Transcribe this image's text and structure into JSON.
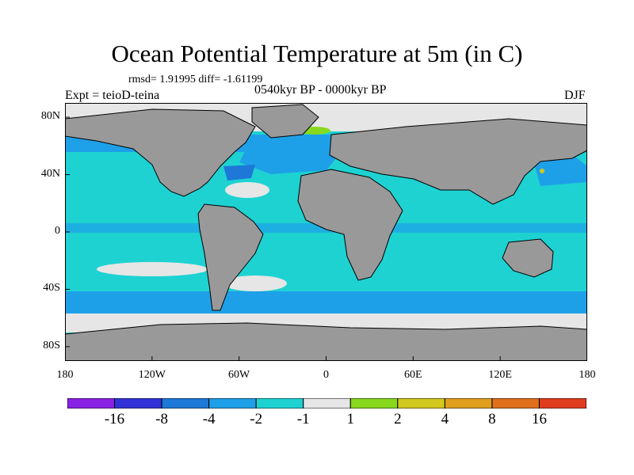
{
  "title": "Ocean Potential Temperature at 5m (in C)",
  "stats_line": "rmsd= 1.91995 diff= -1.61199",
  "experiment_line": "Expt = teioD-teina",
  "period_line": "0540kyr BP - 0000kyr BP",
  "season": "DJF",
  "map": {
    "projection": "cylindrical equidistant",
    "lon_range": [
      -180,
      180
    ],
    "lat_range": [
      -90,
      90
    ],
    "lon_ticks": [
      {
        "value": -180,
        "label": "180"
      },
      {
        "value": -120,
        "label": "120W"
      },
      {
        "value": -60,
        "label": "60W"
      },
      {
        "value": 0,
        "label": "0"
      },
      {
        "value": 60,
        "label": "60E"
      },
      {
        "value": 120,
        "label": "120E"
      },
      {
        "value": 180,
        "label": "180"
      }
    ],
    "lat_ticks": [
      {
        "value": 80,
        "label": "80N"
      },
      {
        "value": 40,
        "label": "40N"
      },
      {
        "value": 0,
        "label": "0"
      },
      {
        "value": -40,
        "label": "40S"
      },
      {
        "value": -80,
        "label": "80S"
      }
    ],
    "land_color": "#999999",
    "dominant_ocean_color": "#1ed2d2"
  },
  "colorbar": {
    "colors": [
      "#8a22e6",
      "#3232d8",
      "#1e78d8",
      "#1ea0e8",
      "#1ed2d2",
      "#e6e6e6",
      "#88d81e",
      "#d2c81e",
      "#e0a01e",
      "#e0701e",
      "#e03c1e"
    ],
    "labels": [
      "-16",
      "-8",
      "-4",
      "-2",
      "-1",
      "1",
      "2",
      "4",
      "8",
      "16"
    ]
  }
}
